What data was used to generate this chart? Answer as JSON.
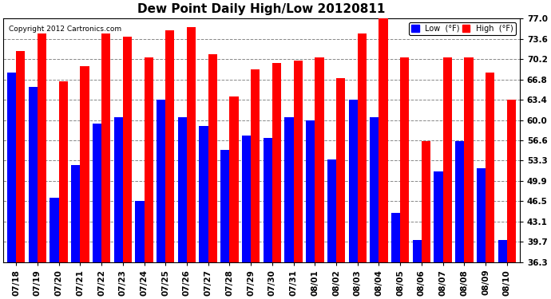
{
  "title": "Dew Point Daily High/Low 20120811",
  "copyright": "Copyright 2012 Cartronics.com",
  "dates": [
    "07/18",
    "07/19",
    "07/20",
    "07/21",
    "07/22",
    "07/23",
    "07/24",
    "07/25",
    "07/26",
    "07/27",
    "07/28",
    "07/29",
    "07/30",
    "07/31",
    "08/01",
    "08/02",
    "08/03",
    "08/04",
    "08/05",
    "08/06",
    "08/07",
    "08/08",
    "08/09",
    "08/10"
  ],
  "low": [
    68.0,
    65.5,
    47.0,
    52.5,
    59.5,
    60.5,
    46.5,
    63.5,
    60.5,
    59.0,
    55.0,
    57.5,
    57.0,
    60.5,
    60.0,
    53.5,
    63.5,
    60.5,
    44.5,
    40.0,
    51.5,
    56.5,
    52.0,
    40.0
  ],
  "high": [
    71.5,
    74.5,
    66.5,
    69.0,
    74.5,
    74.0,
    70.5,
    75.0,
    75.5,
    71.0,
    64.0,
    68.5,
    69.5,
    70.0,
    70.5,
    67.0,
    74.5,
    77.5,
    70.5,
    56.5,
    70.5,
    70.5,
    68.0,
    63.5
  ],
  "low_color": "#0000ff",
  "high_color": "#ff0000",
  "bg_color": "#ffffff",
  "plot_bg_color": "#ffffff",
  "yticks": [
    36.3,
    39.7,
    43.1,
    46.5,
    49.9,
    53.3,
    56.6,
    60.0,
    63.4,
    66.8,
    70.2,
    73.6,
    77.0
  ],
  "ymin": 36.3,
  "ymax": 77.0,
  "grid_color": "#888888",
  "title_fontsize": 11,
  "tick_fontsize": 7.5,
  "bar_bottom": 36.3
}
